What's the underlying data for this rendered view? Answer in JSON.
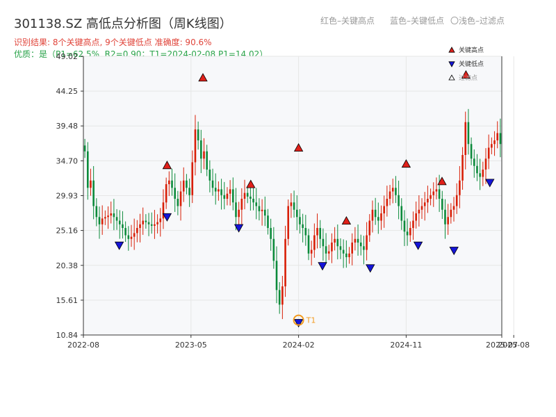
{
  "title": "301138.SZ 高低点分析图（周K线图）",
  "legend_top": {
    "red": "红色–关键高点",
    "blue": "蓝色–关键低点",
    "filtered": "〇浅色–过滤点"
  },
  "result_text": "识别结果: 8个关键高点, 9个关键低点  准确度: 90.6%",
  "quality_text": "优质：是（P1=62.5%, R2=0.90；T1=2024-02-08 P1=14.02）",
  "colors": {
    "up": "#d81e06",
    "down": "#0b8a3a",
    "high_marker": "#e0201a",
    "low_marker": "#1515d8",
    "t1_circle": "#f39a1e",
    "plot_bg": "#f7f8fa",
    "grid": "#e6e6e6"
  },
  "chart_data": {
    "type": "candlestick",
    "title": "301138.SZ 高低点分析图（周K线图）",
    "y_ticks": [
      "10.84",
      "15.61",
      "20.38",
      "25.16",
      "29.93",
      "34.70",
      "39.48",
      "44.25",
      "49.02"
    ],
    "ylim": [
      10.84,
      49.02
    ],
    "x_ticks": [
      "2022-08",
      "2023-05",
      "2024-02",
      "2024-11",
      "2025-07",
      "2025-08"
    ],
    "legend": [
      {
        "label": "关键高点",
        "marker": "triangle-up",
        "color": "#e0201a"
      },
      {
        "label": "关键低点",
        "marker": "triangle-down",
        "color": "#1515d8"
      },
      {
        "label": "过滤点",
        "marker": "triangle-up-hollow",
        "color": "#999999"
      }
    ],
    "key_highs": [
      {
        "date": "2023-03",
        "value": 33.5
      },
      {
        "date": "2023-06",
        "value": 45.5
      },
      {
        "date": "2023-10",
        "value": 30.9
      },
      {
        "date": "2024-02",
        "value": 35.9
      },
      {
        "date": "2024-06",
        "value": 25.9
      },
      {
        "date": "2024-11",
        "value": 33.7
      },
      {
        "date": "2025-02",
        "value": 31.3
      },
      {
        "date": "2025-04",
        "value": 45.9
      }
    ],
    "key_lows": [
      {
        "date": "2022-11",
        "value": 23.6
      },
      {
        "date": "2023-03",
        "value": 27.5
      },
      {
        "date": "2023-09",
        "value": 26.0
      },
      {
        "date": "2024-02",
        "value": 13.0
      },
      {
        "date": "2024-04",
        "value": 20.8
      },
      {
        "date": "2024-08",
        "value": 20.5
      },
      {
        "date": "2024-12",
        "value": 23.6
      },
      {
        "date": "2025-03",
        "value": 22.9
      },
      {
        "date": "2025-06",
        "value": 32.2
      }
    ],
    "t1": {
      "label": "T1",
      "date": "2024-02-08",
      "value": 14.02
    },
    "close_path": [
      36.0,
      31.0,
      32.0,
      28.5,
      27.0,
      26.0,
      26.8,
      27.0,
      27.2,
      27.5,
      27.0,
      26.5,
      26.0,
      25.5,
      24.5,
      24.0,
      24.3,
      24.8,
      25.5,
      26.0,
      26.5,
      26.3,
      26.0,
      25.8,
      26.0,
      26.3,
      26.8,
      29.0,
      31.5,
      32.0,
      31.0,
      29.5,
      28.5,
      30.5,
      32.0,
      31.0,
      30.0,
      34.5,
      39.0,
      37.5,
      35.0,
      36.0,
      33.5,
      32.0,
      31.0,
      30.5,
      30.8,
      30.0,
      29.5,
      30.2,
      30.8,
      29.0,
      27.0,
      28.0,
      29.5,
      30.3,
      29.8,
      29.5,
      29.0,
      28.5,
      27.8,
      28.0,
      27.2,
      25.5,
      24.0,
      21.0,
      17.0,
      15.0,
      17.5,
      24.0,
      28.5,
      29.0,
      28.0,
      27.0,
      26.0,
      25.5,
      24.5,
      22.0,
      22.5,
      24.5,
      25.5,
      24.0,
      23.0,
      22.0,
      22.3,
      23.5,
      24.0,
      23.0,
      22.5,
      22.0,
      21.5,
      22.0,
      23.5,
      24.0,
      23.5,
      23.0,
      22.5,
      24.5,
      26.5,
      28.0,
      27.0,
      26.5,
      27.5,
      28.5,
      29.5,
      30.5,
      31.0,
      30.0,
      28.5,
      26.5,
      25.0,
      24.5,
      25.5,
      26.5,
      27.5,
      28.0,
      28.5,
      29.0,
      29.5,
      30.0,
      30.5,
      30.8,
      29.5,
      28.0,
      26.0,
      27.0,
      28.0,
      28.5,
      30.0,
      32.0,
      35.5,
      40.0,
      37.0,
      35.0,
      34.0,
      33.0,
      32.5,
      33.5,
      35.0,
      36.5,
      37.0,
      37.5,
      38.5,
      37.0
    ]
  }
}
